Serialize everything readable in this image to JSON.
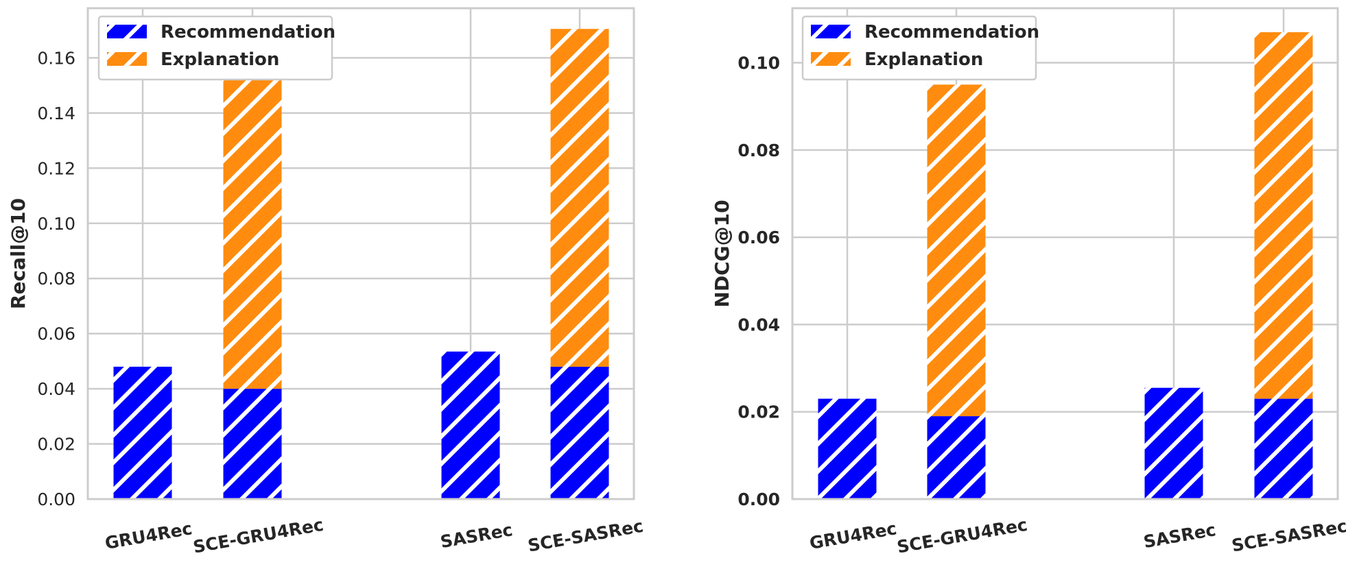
{
  "chart_data": [
    {
      "type": "bar",
      "stacked": true,
      "categories": [
        "GRU4Rec",
        "SCE-GRU4Rec",
        "SASRec",
        "SCE-SASRec"
      ],
      "series": [
        {
          "name": "Recommendation",
          "values": [
            0.048,
            0.04,
            0.0535,
            0.048
          ]
        },
        {
          "name": "Explanation",
          "values": [
            0,
            0.113,
            0,
            0.1225
          ]
        }
      ],
      "ylabel": "Recall@10",
      "ylim": [
        0,
        0.178
      ],
      "yticks": [
        "0.00",
        "0.02",
        "0.04",
        "0.06",
        "0.08",
        "0.10",
        "0.12",
        "0.14",
        "0.16"
      ],
      "grid": true,
      "legend": "top-left"
    },
    {
      "type": "bar",
      "stacked": true,
      "categories": [
        "GRU4Rec",
        "SCE-GRU4Rec",
        "SASRec",
        "SCE-SASRec"
      ],
      "series": [
        {
          "name": "Recommendation",
          "values": [
            0.023,
            0.019,
            0.0255,
            0.023
          ]
        },
        {
          "name": "Explanation",
          "values": [
            0,
            0.076,
            0,
            0.084
          ]
        }
      ],
      "ylabel": "NDCG@10",
      "ylim": [
        0,
        0.1125
      ],
      "yticks": [
        "0.00",
        "0.02",
        "0.04",
        "0.06",
        "0.08",
        "0.10"
      ],
      "grid": true,
      "legend": "top-left"
    }
  ],
  "colors": {
    "recommendation": "#0000ff",
    "explanation": "#ff8c0f",
    "hatch": "#ffffff"
  }
}
